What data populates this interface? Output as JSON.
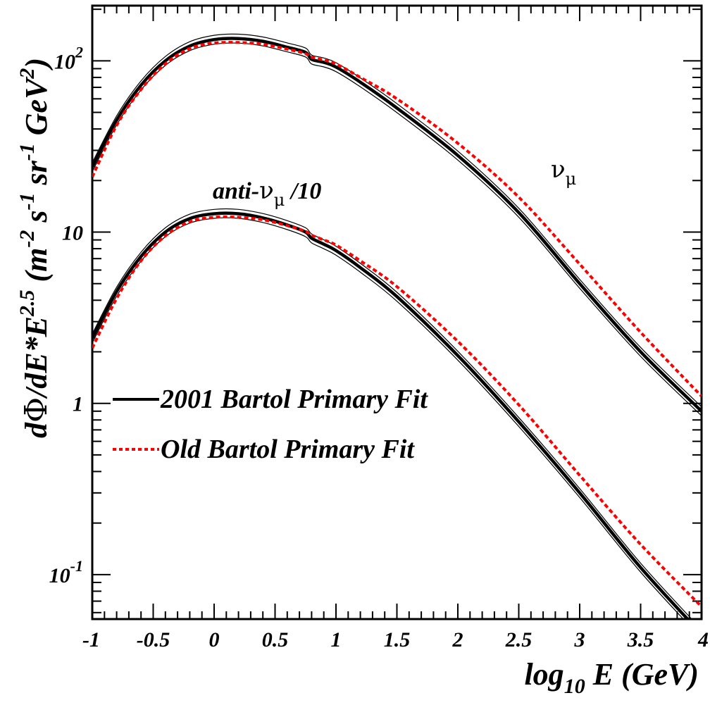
{
  "chart_data": {
    "type": "line",
    "xlabel": "log10 E (GeV)",
    "ylabel": "dΦ/dE*E^2.5 (m^-2 s^-1 sr^-1 GeV^2)",
    "xlim": [
      -1,
      4
    ],
    "ylim": [
      0.055,
      210
    ],
    "y_scale": "log",
    "x_ticks": [
      "-1",
      "-0.5",
      "0",
      "0.5",
      "1",
      "1.5",
      "2",
      "2.5",
      "3",
      "3.5",
      "4"
    ],
    "y_ticks": [
      "10^-1",
      "1",
      "10",
      "10^2"
    ],
    "grid": false,
    "legend_position": "center-left",
    "legend": [
      "2001 Bartol Primary Fit",
      "Old Bartol Primary Fit"
    ],
    "annotations": [
      "anti-νμ /10",
      "νμ"
    ],
    "x": [
      -1.0,
      -0.8,
      -0.6,
      -0.4,
      -0.2,
      0.0,
      0.2,
      0.4,
      0.6,
      0.75,
      0.8,
      0.9,
      1.0,
      1.2,
      1.5,
      2.0,
      2.5,
      3.0,
      3.5,
      4.0
    ],
    "series": [
      {
        "name": "2001 Bartol Primary Fit",
        "group": "νμ",
        "style": "solid",
        "values": [
          24,
          45,
          72,
          100,
          122,
          133,
          135,
          130,
          120,
          112,
          102,
          98,
          92,
          75,
          53,
          28,
          13,
          5.0,
          2.0,
          0.9
        ]
      },
      {
        "name": "Old Bartol Primary Fit",
        "group": "νμ",
        "style": "dashed",
        "values": [
          21,
          42,
          68,
          96,
          118,
          127,
          128,
          125,
          117,
          110,
          105,
          101,
          96,
          80,
          60,
          33,
          16,
          6.5,
          2.6,
          1.1
        ]
      },
      {
        "name": "2001 Bartol Primary Fit",
        "group": "anti-νμ /10",
        "style": "solid",
        "values": [
          2.4,
          4.5,
          7.2,
          10.0,
          12.0,
          12.8,
          12.8,
          12.1,
          11.0,
          10.0,
          9.2,
          8.5,
          7.8,
          6.2,
          4.2,
          1.9,
          0.78,
          0.3,
          0.11,
          0.045
        ]
      },
      {
        "name": "Old Bartol Primary Fit",
        "group": "anti-νμ /10",
        "style": "dashed",
        "values": [
          2.1,
          4.1,
          6.8,
          9.5,
          11.5,
          12.2,
          12.2,
          11.8,
          10.9,
          10.1,
          9.6,
          9.0,
          8.4,
          6.8,
          4.8,
          2.3,
          0.98,
          0.38,
          0.15,
          0.065
        ]
      }
    ],
    "colors": {
      "solid": "#000000",
      "dashed": "#ff0000"
    }
  }
}
